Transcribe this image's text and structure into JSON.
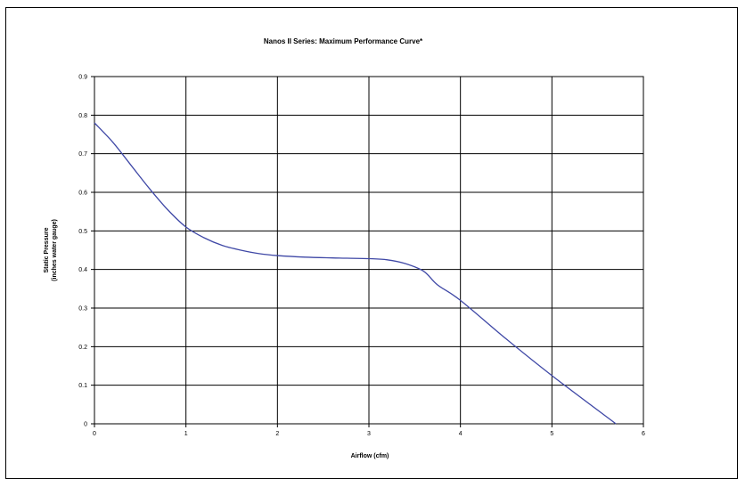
{
  "chart_data": {
    "type": "line",
    "title": "Nanos II Series: Maximum Performance Curve*",
    "xlabel": "Airflow (cfm)",
    "ylabel": [
      "Static Pressure",
      "(inches water gauge)"
    ],
    "xlim": [
      0,
      6
    ],
    "ylim": [
      0,
      0.9
    ],
    "xticks": [
      "0",
      "1",
      "2",
      "3",
      "4",
      "5",
      "6"
    ],
    "yticks": [
      "0",
      "0.1",
      "0.2",
      "0.3",
      "0.4",
      "0.5",
      "0.6",
      "0.7",
      "0.8",
      "0.9"
    ],
    "grid": true,
    "legend": "none",
    "series": [
      {
        "color": "#3f48a6",
        "points": [
          [
            0,
            0.78
          ],
          [
            0.2,
            0.73
          ],
          [
            0.4,
            0.67
          ],
          [
            0.6,
            0.61
          ],
          [
            0.8,
            0.555
          ],
          [
            1.0,
            0.51
          ],
          [
            1.2,
            0.482
          ],
          [
            1.4,
            0.462
          ],
          [
            1.6,
            0.45
          ],
          [
            1.8,
            0.441
          ],
          [
            2.0,
            0.436
          ],
          [
            2.3,
            0.432
          ],
          [
            2.6,
            0.43
          ],
          [
            3.0,
            0.428
          ],
          [
            3.2,
            0.425
          ],
          [
            3.4,
            0.415
          ],
          [
            3.6,
            0.395
          ],
          [
            3.75,
            0.36
          ],
          [
            4.0,
            0.32
          ],
          [
            4.5,
            0.22
          ],
          [
            5.0,
            0.125
          ],
          [
            5.7,
            0.0
          ]
        ]
      }
    ]
  }
}
